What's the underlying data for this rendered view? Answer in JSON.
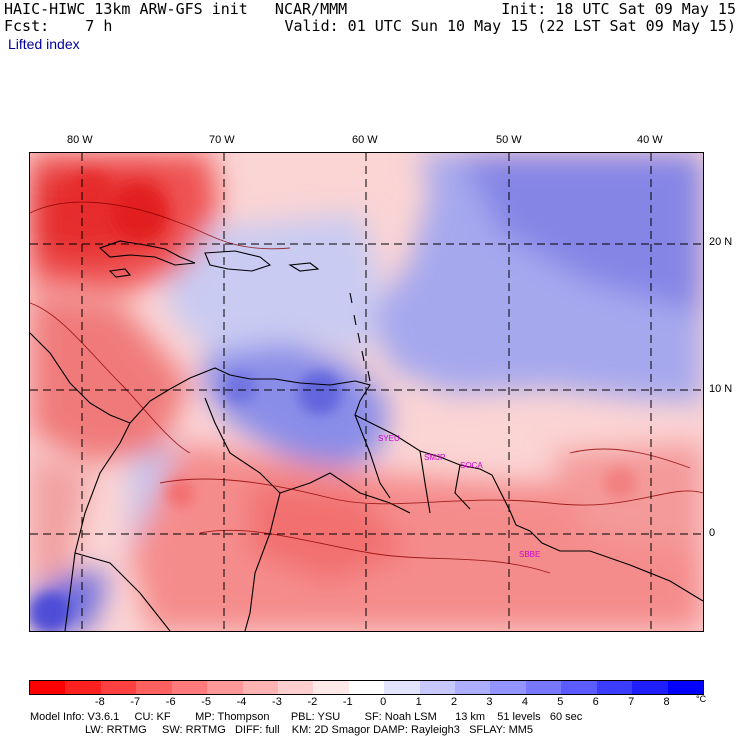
{
  "header": {
    "line1_left": "HAIC-HIWC 13km ARW-GFS init   NCAR/MMM",
    "line1_right": "Init: 18 UTC Sat 09 May 15",
    "line2_left": "Fcst:    7 h",
    "line2_right": "Valid: 01 UTC Sun 10 May 15 (22 LST Sat 09 May 15)",
    "field_label": "Lifted index"
  },
  "map": {
    "longitude_labels": [
      "80 W",
      "70 W",
      "60 W",
      "50 W",
      "40 W"
    ],
    "latitude_labels": [
      "20 N",
      "10 N",
      "0"
    ],
    "stations": [
      "SYEU",
      "SMJP",
      "SOCA",
      "SBBE"
    ],
    "station_color": "#d000d0",
    "coastline_color": "#000000",
    "grid_line_style": "dashed"
  },
  "colorbar": {
    "labels": [
      "-8",
      "-7",
      "-6",
      "-5",
      "-4",
      "-3",
      "-2",
      "-1",
      "0",
      "1",
      "2",
      "3",
      "4",
      "5",
      "6",
      "7",
      "8"
    ],
    "unit": "°C",
    "colors": [
      "#ff0000",
      "#ff2020",
      "#ff4040",
      "#ff6060",
      "#ff7b7b",
      "#ff9898",
      "#ffb3b3",
      "#ffcece",
      "#ffe8e8",
      "#ffffff",
      "#e4e4ff",
      "#c8c8ff",
      "#aeaeff",
      "#9494ff",
      "#7878ff",
      "#5b5bff",
      "#3c3cff",
      "#1e1eff",
      "#0000ff"
    ]
  },
  "footer": {
    "line1": "Model Info: V3.6.1     CU: KF        MP: Thompson       PBL: YSU        SF: Noah LSM      13 km    51 levels   60 sec",
    "line2": "                  LW: RRTMG     SW: RRTMG   DIFF: full    KM: 2D Smagor DAMP: Rayleigh3   SFLAY: MM5"
  }
}
